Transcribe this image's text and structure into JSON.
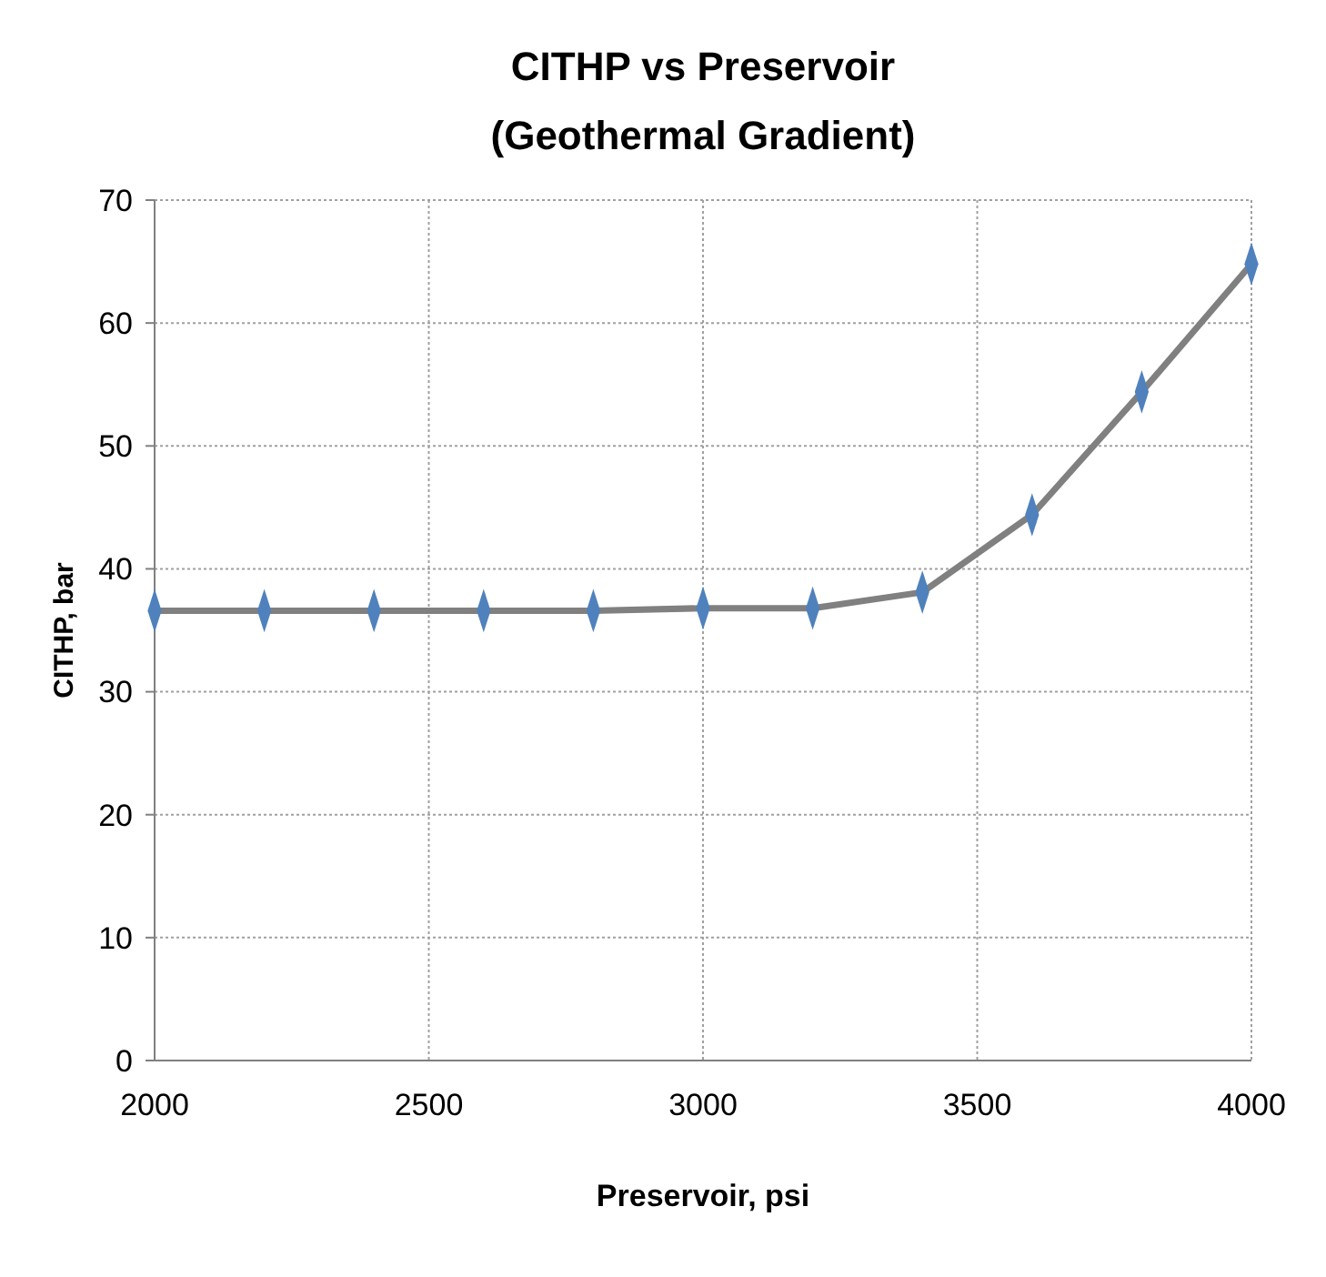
{
  "chart_data": {
    "type": "line",
    "title": "CITHP vs Preservoir\n(Geothermal Gradient)",
    "xlabel": "Preservoir, psi",
    "ylabel": "CITHP, bar",
    "x": [
      2000,
      2200,
      2400,
      2600,
      2800,
      3000,
      3200,
      3400,
      3600,
      3800,
      4000
    ],
    "series": [
      {
        "color": "#808080",
        "marker": "none",
        "values": [
          36.6,
          36.6,
          36.6,
          36.6,
          36.6,
          36.8,
          36.8,
          38.1,
          44.4,
          54.4,
          64.8
        ]
      },
      {
        "type": "scatter",
        "color": "#4f81bd",
        "marker": "diamond",
        "values": [
          36.6,
          36.6,
          36.6,
          36.6,
          36.6,
          36.8,
          36.8,
          38.1,
          44.4,
          54.4,
          64.8
        ]
      }
    ],
    "grid": true,
    "xlim": [
      2000,
      4000
    ],
    "xticks": [
      2000,
      2500,
      3000,
      3500,
      4000
    ],
    "ylim": [
      0,
      70
    ],
    "yticks": [
      0,
      10,
      20,
      30,
      40,
      50,
      60,
      70
    ]
  }
}
